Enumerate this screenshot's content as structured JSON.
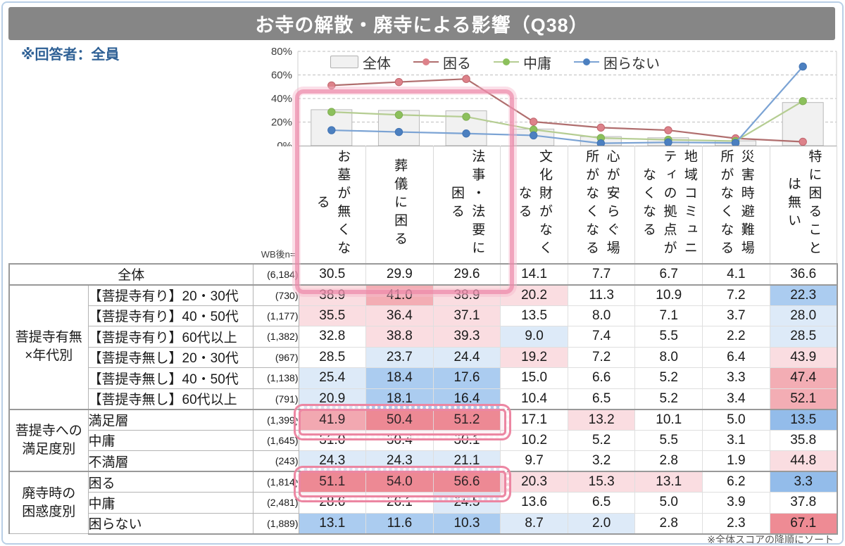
{
  "page": {
    "title": "お寺の解散・廃寺による影響（Q38）",
    "respondent_note": "※回答者：全員",
    "sort_note": "※全体スコアの降順にソート"
  },
  "colors": {
    "title_bg": "#868686",
    "title_text": "#ffffff",
    "respondent_blue": "#2e6095",
    "sort_note_gray": "#595959",
    "grid": "#c9c9c9",
    "axis_text": "#3d3d3d",
    "plot_border": "#cfcfcf",
    "heat_red": [
      "#fadde1",
      "#f3adb4",
      "#ee8b94"
    ],
    "heat_blue": [
      "#ddeaf8",
      "#abccf0",
      "#93bcea"
    ],
    "highlight_pink": "#ec86a2"
  },
  "chart_data": {
    "type": "bar+line combo",
    "categories": [
      "お墓が無くなる",
      "葬儀に困る",
      "法事・法要に困る",
      "文化財がなくなる",
      "心が安らぐ場所がなくなる",
      "地域コミュニティの拠点がなくなる",
      "災害時避難場所がなくなる",
      "特に困ることは無い"
    ],
    "series": [
      {
        "name": "全体",
        "type": "bar",
        "fill": "#f1f1f1",
        "stroke": "#b9b9b9",
        "values": [
          30.5,
          29.9,
          29.6,
          14.1,
          7.7,
          6.7,
          4.1,
          36.6
        ]
      },
      {
        "name": "困る",
        "type": "line",
        "line": "#b06e6e",
        "marker": "#dd828a",
        "marker_stroke": "#c0656d",
        "values": [
          51.1,
          54.0,
          56.6,
          20.3,
          15.3,
          13.1,
          6.2,
          3.3
        ]
      },
      {
        "name": "中庸",
        "type": "line",
        "line": "#b5cd92",
        "marker": "#8cc05c",
        "marker_stroke": "#7fae52",
        "values": [
          28.6,
          26.1,
          24.5,
          13.6,
          6.5,
          5.0,
          3.9,
          37.8
        ]
      },
      {
        "name": "困らない",
        "type": "line",
        "line": "#7ba3d4",
        "marker": "#4c80c0",
        "marker_stroke": "#4173b3",
        "values": [
          13.1,
          11.6,
          10.3,
          8.7,
          2.0,
          2.8,
          2.3,
          67.1
        ]
      }
    ],
    "ylim": [
      0,
      80
    ],
    "yticks": [
      "0%",
      "20%",
      "40%",
      "60%",
      "80%"
    ],
    "grid": "dashed horizontal",
    "legend_position": "top inside"
  },
  "table": {
    "n_header": "WB後n=",
    "columns": [
      "お墓が無くなる",
      "葬儀に困る",
      "法事・法要に困る",
      "文化財がなくなる",
      "心が安らぐ場所がなくなる",
      "地域コミュニティの拠点がなくなる",
      "災害時避難場所がなくなる",
      "特に困ることは無い"
    ],
    "overall_row": {
      "label": "全体",
      "n": "(6,184)",
      "values": [
        30.5,
        29.9,
        29.6,
        14.1,
        7.7,
        6.7,
        4.1,
        36.6
      ]
    },
    "groups": [
      {
        "label": "菩提寺有無\n×年代別",
        "rows": [
          {
            "label": "【菩提寺有り】20・30代",
            "n": "(730)",
            "values": [
              38.9,
              41.0,
              38.9,
              20.2,
              11.3,
              10.9,
              7.2,
              22.3
            ]
          },
          {
            "label": "【菩提寺有り】40・50代",
            "n": "(1,177)",
            "values": [
              35.5,
              36.4,
              37.1,
              13.5,
              8.0,
              7.1,
              3.7,
              28.0
            ]
          },
          {
            "label": "【菩提寺有り】60代以上",
            "n": "(1,382)",
            "values": [
              32.8,
              38.8,
              39.3,
              9.0,
              7.4,
              5.5,
              2.2,
              28.5
            ]
          },
          {
            "label": "【菩提寺無し】20・30代",
            "n": "(967)",
            "values": [
              28.5,
              23.7,
              24.4,
              19.2,
              7.2,
              8.0,
              6.4,
              43.9
            ]
          },
          {
            "label": "【菩提寺無し】40・50代",
            "n": "(1,138)",
            "values": [
              25.4,
              18.4,
              17.6,
              15.0,
              6.6,
              5.2,
              3.3,
              47.4
            ]
          },
          {
            "label": "【菩提寺無し】60代以上",
            "n": "(791)",
            "values": [
              20.9,
              18.1,
              16.4,
              10.4,
              6.5,
              5.2,
              3.4,
              52.1
            ]
          }
        ]
      },
      {
        "label": "菩提寺への\n満足度別",
        "rows": [
          {
            "label": "満足層",
            "n": "(1,399)",
            "values": [
              41.9,
              50.4,
              51.2,
              17.1,
              13.2,
              10.1,
              5.0,
              13.5
            ]
          },
          {
            "label": "中庸",
            "n": "(1,645)",
            "values": [
              31.0,
              30.4,
              30.1,
              10.2,
              5.2,
              5.5,
              3.1,
              35.8
            ]
          },
          {
            "label": "不満層",
            "n": "(243)",
            "values": [
              24.3,
              24.3,
              21.1,
              9.7,
              3.2,
              2.8,
              1.9,
              44.8
            ]
          }
        ]
      },
      {
        "label": "廃寺時の\n困惑度別",
        "rows": [
          {
            "label": "困る",
            "n": "(1,814)",
            "values": [
              51.1,
              54.0,
              56.6,
              20.3,
              15.3,
              13.1,
              6.2,
              3.3
            ]
          },
          {
            "label": "中庸",
            "n": "(2,481)",
            "values": [
              28.6,
              26.1,
              24.5,
              13.6,
              6.5,
              5.0,
              3.9,
              37.8
            ]
          },
          {
            "label": "困らない",
            "n": "(1,889)",
            "values": [
              13.1,
              11.6,
              10.3,
              8.7,
              2.0,
              2.8,
              2.3,
              67.1
            ]
          }
        ]
      }
    ],
    "heat_rule": "cell shaded red/blue when difference from 全体 row is >= +/-5 (light), +/-10 (medium), +/-20 (strong) points"
  },
  "highlights": {
    "column_indices": [
      0,
      1,
      2
    ],
    "dotted_row_labels": [
      "満足層",
      "困る"
    ]
  }
}
